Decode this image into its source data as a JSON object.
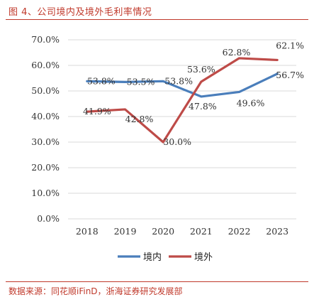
{
  "figure": {
    "title": "图 4、公司境内及境外毛利率情况",
    "source": "数据来源：同花顺iFinD，浙海证券研究发展部"
  },
  "colors": {
    "domestic": "#4a7ebb",
    "overseas": "#be4b48",
    "accent": "#c0392b"
  },
  "chart_data": {
    "type": "line",
    "title": "",
    "xlabel": "",
    "ylabel": "",
    "categories": [
      "2018",
      "2019",
      "2020",
      "2021",
      "2022",
      "2023"
    ],
    "ylim": [
      0,
      70
    ],
    "yticks": [
      "0.0%",
      "10.0%",
      "20.0%",
      "30.0%",
      "40.0%",
      "50.0%",
      "60.0%",
      "70.0%"
    ],
    "grid": true,
    "legend": "bottom",
    "series": [
      {
        "name": "境内",
        "values": [
          53.8,
          53.5,
          53.8,
          47.8,
          49.6,
          56.7
        ],
        "labels": [
          "53.8%",
          "53.5%",
          "53.8%",
          "47.8%",
          "49.6%",
          "56.7%"
        ]
      },
      {
        "name": "境外",
        "values": [
          41.9,
          42.8,
          30.0,
          53.6,
          62.8,
          62.1
        ],
        "labels": [
          "41.9%",
          "42.8%",
          "30.0%",
          "53.6%",
          "62.8%",
          "62.1%"
        ]
      }
    ]
  }
}
